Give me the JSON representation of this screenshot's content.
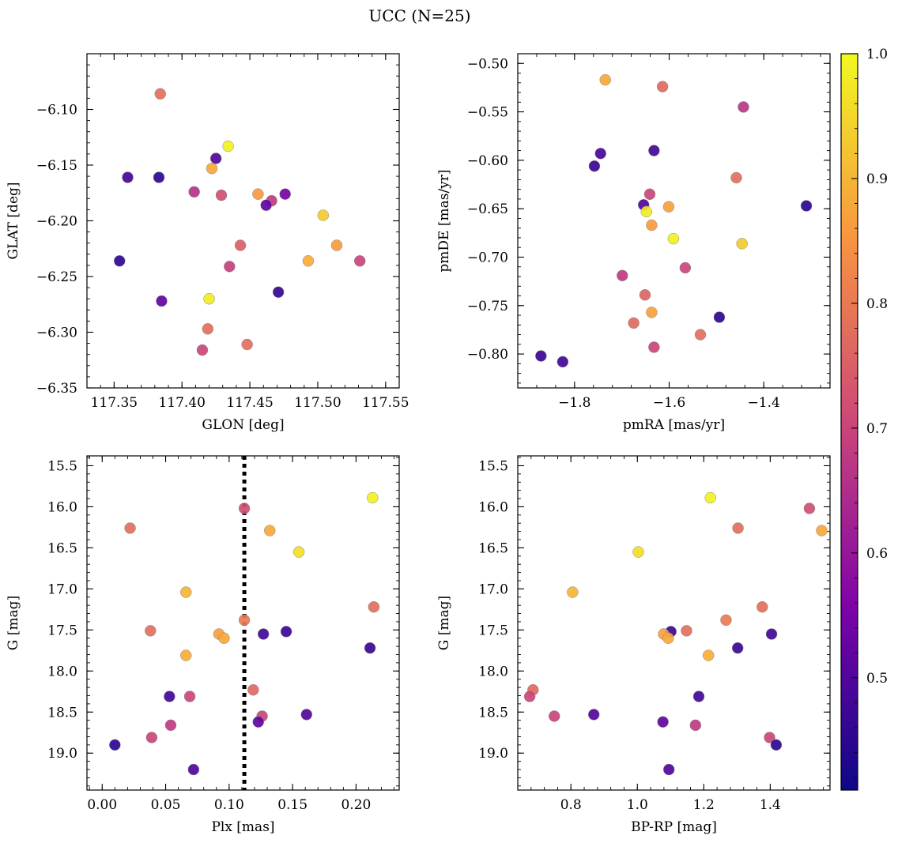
{
  "figure_title": "UCC (N=25)",
  "colorbar": {
    "range": [
      0.41,
      1.0
    ],
    "ticks": [
      0.5,
      0.6,
      0.7,
      0.8,
      0.9,
      1.0
    ],
    "colormap": "plasma"
  },
  "chart_data": [
    {
      "type": "scatter",
      "xlabel": "GLON [deg]",
      "ylabel": "GLAT [deg]",
      "xlim": [
        117.33,
        117.56
      ],
      "ylim": [
        -6.35,
        -6.05
      ],
      "xticks": [
        117.35,
        117.4,
        117.45,
        117.5,
        117.55
      ],
      "yticks": [
        -6.1,
        -6.15,
        -6.2,
        -6.25,
        -6.3,
        -6.35
      ],
      "xtick_decimals": 2,
      "ytick_decimals": 2,
      "points": [
        {
          "x": 117.384,
          "y": -6.086,
          "c": 0.78
        },
        {
          "x": 117.434,
          "y": -6.133,
          "c": 0.99
        },
        {
          "x": 117.425,
          "y": -6.144,
          "c": 0.5
        },
        {
          "x": 117.422,
          "y": -6.153,
          "c": 0.88
        },
        {
          "x": 117.36,
          "y": -6.161,
          "c": 0.48
        },
        {
          "x": 117.383,
          "y": -6.161,
          "c": 0.45
        },
        {
          "x": 117.409,
          "y": -6.174,
          "c": 0.66
        },
        {
          "x": 117.429,
          "y": -6.177,
          "c": 0.72
        },
        {
          "x": 117.456,
          "y": -6.176,
          "c": 0.86
        },
        {
          "x": 117.476,
          "y": -6.176,
          "c": 0.55
        },
        {
          "x": 117.466,
          "y": -6.182,
          "c": 0.68
        },
        {
          "x": 117.462,
          "y": -6.186,
          "c": 0.52
        },
        {
          "x": 117.504,
          "y": -6.195,
          "c": 0.93
        },
        {
          "x": 117.443,
          "y": -6.222,
          "c": 0.75
        },
        {
          "x": 117.514,
          "y": -6.222,
          "c": 0.86
        },
        {
          "x": 117.354,
          "y": -6.236,
          "c": 0.45
        },
        {
          "x": 117.493,
          "y": -6.236,
          "c": 0.89
        },
        {
          "x": 117.531,
          "y": -6.236,
          "c": 0.7
        },
        {
          "x": 117.435,
          "y": -6.241,
          "c": 0.69
        },
        {
          "x": 117.471,
          "y": -6.264,
          "c": 0.46
        },
        {
          "x": 117.42,
          "y": -6.27,
          "c": 0.98
        },
        {
          "x": 117.385,
          "y": -6.272,
          "c": 0.52
        },
        {
          "x": 117.419,
          "y": -6.297,
          "c": 0.78
        },
        {
          "x": 117.448,
          "y": -6.311,
          "c": 0.78
        },
        {
          "x": 117.415,
          "y": -6.316,
          "c": 0.7
        }
      ]
    },
    {
      "type": "scatter",
      "xlabel": "pmRA [mas/yr]",
      "ylabel": "pmDE [mas/yr]",
      "xlim": [
        -1.92,
        -1.26
      ],
      "ylim": [
        -0.835,
        -0.49
      ],
      "xticks": [
        -1.8,
        -1.6,
        -1.4
      ],
      "yticks": [
        -0.5,
        -0.55,
        -0.6,
        -0.65,
        -0.7,
        -0.75,
        -0.8
      ],
      "xtick_decimals": 1,
      "ytick_decimals": 2,
      "points": [
        {
          "x": -1.735,
          "y": -0.517,
          "c": 0.88
        },
        {
          "x": -1.614,
          "y": -0.524,
          "c": 0.77
        },
        {
          "x": -1.443,
          "y": -0.545,
          "c": 0.67
        },
        {
          "x": -1.745,
          "y": -0.593,
          "c": 0.49
        },
        {
          "x": -1.632,
          "y": -0.59,
          "c": 0.48
        },
        {
          "x": -1.758,
          "y": -0.606,
          "c": 0.47
        },
        {
          "x": -1.458,
          "y": -0.618,
          "c": 0.78
        },
        {
          "x": -1.641,
          "y": -0.635,
          "c": 0.7
        },
        {
          "x": -1.654,
          "y": -0.646,
          "c": 0.5
        },
        {
          "x": -1.648,
          "y": -0.653,
          "c": 0.98
        },
        {
          "x": -1.601,
          "y": -0.648,
          "c": 0.87
        },
        {
          "x": -1.31,
          "y": -0.647,
          "c": 0.45
        },
        {
          "x": -1.637,
          "y": -0.667,
          "c": 0.86
        },
        {
          "x": -1.591,
          "y": -0.681,
          "c": 0.99
        },
        {
          "x": -1.446,
          "y": -0.686,
          "c": 0.93
        },
        {
          "x": -1.566,
          "y": -0.711,
          "c": 0.7
        },
        {
          "x": -1.699,
          "y": -0.719,
          "c": 0.68
        },
        {
          "x": -1.651,
          "y": -0.739,
          "c": 0.76
        },
        {
          "x": -1.675,
          "y": -0.768,
          "c": 0.77
        },
        {
          "x": -1.637,
          "y": -0.757,
          "c": 0.87
        },
        {
          "x": -1.494,
          "y": -0.762,
          "c": 0.45
        },
        {
          "x": -1.534,
          "y": -0.78,
          "c": 0.78
        },
        {
          "x": -1.632,
          "y": -0.793,
          "c": 0.7
        },
        {
          "x": -1.871,
          "y": -0.802,
          "c": 0.47
        },
        {
          "x": -1.825,
          "y": -0.808,
          "c": 0.48
        }
      ]
    },
    {
      "type": "scatter",
      "xlabel": "Plx [mas]",
      "ylabel": "G [mag]",
      "xlim": [
        -0.012,
        0.234
      ],
      "ylim": [
        19.45,
        15.38
      ],
      "xticks": [
        0.0,
        0.05,
        0.1,
        0.15,
        0.2
      ],
      "yticks": [
        15.5,
        16.0,
        16.5,
        17.0,
        17.5,
        18.0,
        18.5,
        19.0
      ],
      "xtick_decimals": 2,
      "ytick_decimals": 1,
      "vline": 0.112,
      "points": [
        {
          "x": 0.112,
          "y": 16.02,
          "c": 0.72
        },
        {
          "x": 0.213,
          "y": 15.89,
          "c": 0.99
        },
        {
          "x": 0.022,
          "y": 16.26,
          "c": 0.78
        },
        {
          "x": 0.132,
          "y": 16.29,
          "c": 0.88
        },
        {
          "x": 0.155,
          "y": 16.55,
          "c": 0.96
        },
        {
          "x": 0.066,
          "y": 17.04,
          "c": 0.9
        },
        {
          "x": 0.214,
          "y": 17.22,
          "c": 0.78
        },
        {
          "x": 0.112,
          "y": 17.38,
          "c": 0.8
        },
        {
          "x": 0.038,
          "y": 17.51,
          "c": 0.78
        },
        {
          "x": 0.092,
          "y": 17.55,
          "c": 0.87
        },
        {
          "x": 0.096,
          "y": 17.6,
          "c": 0.88
        },
        {
          "x": 0.127,
          "y": 17.55,
          "c": 0.48
        },
        {
          "x": 0.145,
          "y": 17.52,
          "c": 0.47
        },
        {
          "x": 0.066,
          "y": 17.81,
          "c": 0.89
        },
        {
          "x": 0.211,
          "y": 17.72,
          "c": 0.47
        },
        {
          "x": 0.119,
          "y": 18.23,
          "c": 0.77
        },
        {
          "x": 0.053,
          "y": 18.31,
          "c": 0.48
        },
        {
          "x": 0.069,
          "y": 18.31,
          "c": 0.7
        },
        {
          "x": 0.161,
          "y": 18.53,
          "c": 0.5
        },
        {
          "x": 0.126,
          "y": 18.55,
          "c": 0.7
        },
        {
          "x": 0.123,
          "y": 18.62,
          "c": 0.52
        },
        {
          "x": 0.054,
          "y": 18.66,
          "c": 0.68
        },
        {
          "x": 0.039,
          "y": 18.81,
          "c": 0.7
        },
        {
          "x": 0.01,
          "y": 18.9,
          "c": 0.45
        },
        {
          "x": 0.072,
          "y": 19.2,
          "c": 0.5
        }
      ]
    },
    {
      "type": "scatter",
      "xlabel": "BP-RP [mag]",
      "ylabel": "G [mag]",
      "xlim": [
        0.64,
        1.58
      ],
      "ylim": [
        19.45,
        15.38
      ],
      "xticks": [
        0.8,
        1.0,
        1.2,
        1.4
      ],
      "yticks": [
        15.5,
        16.0,
        16.5,
        17.0,
        17.5,
        18.0,
        18.5,
        19.0
      ],
      "xtick_decimals": 1,
      "ytick_decimals": 1,
      "points": [
        {
          "x": 1.22,
          "y": 15.89,
          "c": 0.99
        },
        {
          "x": 1.518,
          "y": 16.02,
          "c": 0.72
        },
        {
          "x": 1.303,
          "y": 16.26,
          "c": 0.78
        },
        {
          "x": 1.555,
          "y": 16.29,
          "c": 0.88
        },
        {
          "x": 1.003,
          "y": 16.55,
          "c": 0.96
        },
        {
          "x": 0.805,
          "y": 17.04,
          "c": 0.9
        },
        {
          "x": 1.376,
          "y": 17.22,
          "c": 0.78
        },
        {
          "x": 1.267,
          "y": 17.38,
          "c": 0.8
        },
        {
          "x": 1.101,
          "y": 17.52,
          "c": 0.47
        },
        {
          "x": 1.148,
          "y": 17.51,
          "c": 0.78
        },
        {
          "x": 1.079,
          "y": 17.55,
          "c": 0.87
        },
        {
          "x": 1.093,
          "y": 17.6,
          "c": 0.88
        },
        {
          "x": 1.404,
          "y": 17.55,
          "c": 0.48
        },
        {
          "x": 1.214,
          "y": 17.81,
          "c": 0.89
        },
        {
          "x": 1.302,
          "y": 17.72,
          "c": 0.47
        },
        {
          "x": 0.686,
          "y": 18.23,
          "c": 0.77
        },
        {
          "x": 0.676,
          "y": 18.31,
          "c": 0.7
        },
        {
          "x": 1.185,
          "y": 18.31,
          "c": 0.48
        },
        {
          "x": 0.75,
          "y": 18.55,
          "c": 0.7
        },
        {
          "x": 0.869,
          "y": 18.53,
          "c": 0.5
        },
        {
          "x": 1.077,
          "y": 18.62,
          "c": 0.52
        },
        {
          "x": 1.175,
          "y": 18.66,
          "c": 0.68
        },
        {
          "x": 1.398,
          "y": 18.81,
          "c": 0.7
        },
        {
          "x": 1.418,
          "y": 18.9,
          "c": 0.45
        },
        {
          "x": 1.095,
          "y": 19.2,
          "c": 0.5
        }
      ]
    }
  ]
}
